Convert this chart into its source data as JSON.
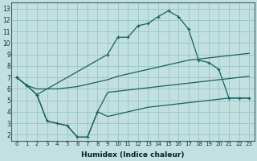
{
  "xlabel": "Humidex (Indice chaleur)",
  "background_color": "#c2e0e0",
  "grid_color": "#9cc8c8",
  "line_color": "#1a6060",
  "xlim": [
    -0.5,
    23.5
  ],
  "ylim": [
    1.5,
    13.5
  ],
  "xticks": [
    0,
    1,
    2,
    3,
    4,
    5,
    6,
    7,
    8,
    9,
    10,
    11,
    12,
    13,
    14,
    15,
    16,
    17,
    18,
    19,
    20,
    21,
    22,
    23
  ],
  "yticks": [
    2,
    3,
    4,
    5,
    6,
    7,
    8,
    9,
    10,
    11,
    12,
    13
  ],
  "curve_top_x": [
    0,
    1,
    2,
    9,
    10,
    11,
    12,
    13,
    14,
    15,
    16,
    17,
    18,
    19,
    20,
    21,
    22,
    23
  ],
  "curve_top_y": [
    7.0,
    6.3,
    5.5,
    9.0,
    10.5,
    10.5,
    11.5,
    11.7,
    12.3,
    12.8,
    12.3,
    11.2,
    8.5,
    8.3,
    7.7,
    5.2,
    5.2,
    5.2
  ],
  "curve_top_mk_x": [
    0,
    1,
    2,
    9,
    10,
    11,
    12,
    13,
    14,
    15,
    16,
    17,
    18,
    19,
    20,
    21,
    22,
    23
  ],
  "curve_top_mk_y": [
    7.0,
    6.3,
    5.5,
    9.0,
    10.5,
    10.5,
    11.5,
    11.7,
    12.3,
    12.8,
    12.3,
    11.2,
    8.5,
    8.3,
    7.7,
    5.2,
    5.2,
    5.2
  ],
  "curve_mid_upper_x": [
    0,
    1,
    2,
    3,
    4,
    5,
    6,
    7,
    8,
    9,
    10,
    11,
    12,
    13,
    14,
    15,
    16,
    17,
    18,
    19,
    20,
    21,
    22,
    23
  ],
  "curve_mid_upper_y": [
    7.0,
    6.3,
    6.0,
    6.0,
    6.0,
    6.1,
    6.2,
    6.4,
    6.6,
    6.8,
    7.1,
    7.3,
    7.5,
    7.7,
    7.9,
    8.1,
    8.3,
    8.5,
    8.6,
    8.7,
    8.8,
    8.9,
    9.0,
    9.1
  ],
  "curve_bot_x": [
    0,
    1,
    2,
    3,
    4,
    5,
    6,
    7,
    8,
    9,
    10,
    11,
    12,
    13,
    14,
    15,
    16,
    17,
    18,
    19,
    20,
    21,
    22,
    23
  ],
  "curve_bot_y": [
    7.0,
    6.3,
    5.5,
    3.2,
    3.0,
    2.8,
    1.8,
    1.8,
    4.0,
    5.7,
    5.8,
    5.9,
    6.0,
    6.1,
    6.2,
    6.3,
    6.4,
    6.5,
    6.6,
    6.7,
    6.8,
    6.9,
    7.0,
    7.1
  ],
  "curve_bot_mk_x": [
    0,
    1,
    2,
    3,
    4,
    5,
    6,
    7,
    8
  ],
  "curve_bot_mk_y": [
    7.0,
    6.3,
    5.5,
    3.2,
    3.0,
    2.8,
    1.8,
    1.8,
    4.0
  ],
  "curve_mid_lower_x": [
    2,
    3,
    4,
    5,
    6,
    7,
    8,
    9,
    10,
    11,
    12,
    13,
    14,
    15,
    16,
    17,
    18,
    19,
    20,
    21,
    22,
    23
  ],
  "curve_mid_lower_y": [
    5.5,
    3.2,
    3.0,
    2.8,
    1.8,
    1.8,
    4.0,
    3.6,
    3.8,
    4.0,
    4.2,
    4.4,
    4.5,
    4.6,
    4.7,
    4.8,
    4.9,
    5.0,
    5.1,
    5.2,
    5.2,
    5.2
  ]
}
